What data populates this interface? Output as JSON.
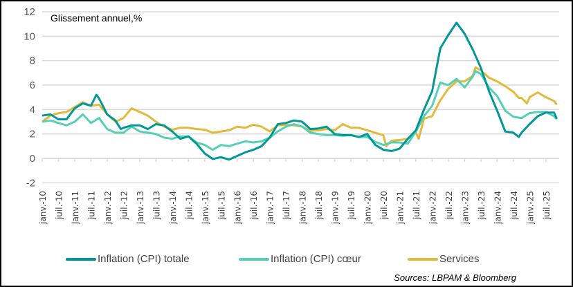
{
  "chart_data": {
    "type": "line",
    "title": "Glissement annuel,%",
    "xlabel": "",
    "ylabel": "",
    "ylim": [
      -2,
      12
    ],
    "y_ticks": [
      -2,
      0,
      2,
      4,
      6,
      8,
      10,
      12
    ],
    "x_range": [
      "2010-01",
      "2025-11"
    ],
    "x_tick_labels": [
      "janv.-10",
      "juil.-10",
      "janv.-11",
      "juil.-11",
      "janv.-12",
      "juil.-12",
      "janv.-13",
      "juil.-13",
      "janv.-14",
      "juil.-14",
      "janv.-15",
      "juil.-15",
      "janv.-16",
      "juil.-16",
      "janv.-17",
      "juil.-17",
      "janv.-18",
      "juil.-18",
      "janv.-19",
      "juil.-19",
      "janv.-20",
      "juil.-20",
      "janv.-21",
      "juil.-21",
      "janv.-22",
      "juil.-22",
      "janv.-23",
      "juil.-23",
      "janv.-24",
      "juil.-24",
      "janv.-25",
      "juil.-25"
    ],
    "grid": true,
    "legend_position": "bottom",
    "source": "Sources: LBPAM & Bloomberg",
    "series": [
      {
        "name": "Inflation (CPI) totale",
        "color": "#00979a",
        "points": [
          [
            "2010-01",
            3.5
          ],
          [
            "2010-04",
            3.6
          ],
          [
            "2010-07",
            3.2
          ],
          [
            "2010-10",
            3.2
          ],
          [
            "2011-01",
            4.1
          ],
          [
            "2011-04",
            4.5
          ],
          [
            "2011-07",
            4.3
          ],
          [
            "2011-09",
            5.2
          ],
          [
            "2011-10",
            4.9
          ],
          [
            "2012-01",
            3.6
          ],
          [
            "2012-04",
            3.1
          ],
          [
            "2012-06",
            2.4
          ],
          [
            "2012-07",
            2.5
          ],
          [
            "2012-10",
            2.7
          ],
          [
            "2013-01",
            2.7
          ],
          [
            "2013-04",
            2.4
          ],
          [
            "2013-07",
            2.8
          ],
          [
            "2013-10",
            2.7
          ],
          [
            "2014-01",
            2.2
          ],
          [
            "2014-04",
            1.6
          ],
          [
            "2014-07",
            1.8
          ],
          [
            "2014-10",
            1.2
          ],
          [
            "2015-01",
            0.4
          ],
          [
            "2015-04",
            -0.05
          ],
          [
            "2015-07",
            0.1
          ],
          [
            "2015-10",
            -0.1
          ],
          [
            "2016-01",
            0.2
          ],
          [
            "2016-04",
            0.5
          ],
          [
            "2016-07",
            0.7
          ],
          [
            "2016-10",
            1.0
          ],
          [
            "2017-01",
            1.7
          ],
          [
            "2017-04",
            2.8
          ],
          [
            "2017-07",
            2.9
          ],
          [
            "2017-10",
            3.1
          ],
          [
            "2018-01",
            3.0
          ],
          [
            "2018-04",
            2.4
          ],
          [
            "2018-07",
            2.45
          ],
          [
            "2018-10",
            2.6
          ],
          [
            "2019-01",
            2.0
          ],
          [
            "2019-04",
            1.9
          ],
          [
            "2019-07",
            1.9
          ],
          [
            "2019-10",
            1.75
          ],
          [
            "2020-01",
            2.0
          ],
          [
            "2020-04",
            1.1
          ],
          [
            "2020-07",
            0.7
          ],
          [
            "2020-10",
            0.6
          ],
          [
            "2021-01",
            0.8
          ],
          [
            "2021-04",
            1.6
          ],
          [
            "2021-07",
            2.3
          ],
          [
            "2021-10",
            4.0
          ],
          [
            "2022-01",
            5.5
          ],
          [
            "2022-04",
            9.0
          ],
          [
            "2022-07",
            10.1
          ],
          [
            "2022-10",
            11.1
          ],
          [
            "2023-01",
            10.2
          ],
          [
            "2023-04",
            8.9
          ],
          [
            "2023-07",
            7.4
          ],
          [
            "2023-10",
            5.5
          ],
          [
            "2024-01",
            3.9
          ],
          [
            "2024-04",
            2.2
          ],
          [
            "2024-07",
            2.1
          ],
          [
            "2024-09",
            1.75
          ],
          [
            "2024-10",
            2.1
          ],
          [
            "2025-01",
            2.8
          ],
          [
            "2025-04",
            3.45
          ],
          [
            "2025-07",
            3.75
          ],
          [
            "2025-10",
            3.75
          ],
          [
            "2025-11",
            3.25
          ]
        ]
      },
      {
        "name": "Inflation (CPI) cœur",
        "color": "#55d0b6",
        "points": [
          [
            "2010-01",
            3.0
          ],
          [
            "2010-04",
            3.1
          ],
          [
            "2010-07",
            2.9
          ],
          [
            "2010-10",
            2.7
          ],
          [
            "2011-01",
            3.0
          ],
          [
            "2011-04",
            3.6
          ],
          [
            "2011-07",
            2.9
          ],
          [
            "2011-10",
            3.3
          ],
          [
            "2012-01",
            2.4
          ],
          [
            "2012-04",
            2.1
          ],
          [
            "2012-07",
            2.1
          ],
          [
            "2012-10",
            2.6
          ],
          [
            "2013-01",
            2.2
          ],
          [
            "2013-04",
            2.1
          ],
          [
            "2013-07",
            2.0
          ],
          [
            "2013-10",
            1.7
          ],
          [
            "2014-01",
            1.6
          ],
          [
            "2014-04",
            1.8
          ],
          [
            "2014-07",
            1.8
          ],
          [
            "2014-10",
            1.3
          ],
          [
            "2015-01",
            1.1
          ],
          [
            "2015-04",
            0.7
          ],
          [
            "2015-07",
            1.1
          ],
          [
            "2015-10",
            1.0
          ],
          [
            "2016-01",
            1.2
          ],
          [
            "2016-04",
            1.4
          ],
          [
            "2016-07",
            1.3
          ],
          [
            "2016-10",
            1.4
          ],
          [
            "2017-01",
            1.7
          ],
          [
            "2017-04",
            2.2
          ],
          [
            "2017-07",
            2.6
          ],
          [
            "2017-10",
            2.8
          ],
          [
            "2018-01",
            2.6
          ],
          [
            "2018-04",
            2.1
          ],
          [
            "2018-07",
            2.0
          ],
          [
            "2018-10",
            1.9
          ],
          [
            "2019-01",
            1.9
          ],
          [
            "2019-04",
            1.85
          ],
          [
            "2019-07",
            1.9
          ],
          [
            "2019-10",
            1.75
          ],
          [
            "2020-01",
            1.75
          ],
          [
            "2020-04",
            1.35
          ],
          [
            "2020-07",
            1.1
          ],
          [
            "2020-10",
            1.3
          ],
          [
            "2021-01",
            1.3
          ],
          [
            "2021-04",
            1.2
          ],
          [
            "2021-07",
            2.2
          ],
          [
            "2021-10",
            3.45
          ],
          [
            "2022-01",
            4.3
          ],
          [
            "2022-04",
            6.2
          ],
          [
            "2022-07",
            6.0
          ],
          [
            "2022-10",
            6.5
          ],
          [
            "2023-01",
            5.8
          ],
          [
            "2023-04",
            6.7
          ],
          [
            "2023-05",
            7.15
          ],
          [
            "2023-07",
            6.9
          ],
          [
            "2023-10",
            5.8
          ],
          [
            "2024-01",
            5.1
          ],
          [
            "2024-04",
            3.9
          ],
          [
            "2024-07",
            3.4
          ],
          [
            "2024-10",
            3.3
          ],
          [
            "2025-01",
            3.7
          ],
          [
            "2025-04",
            3.8
          ],
          [
            "2025-07",
            3.8
          ],
          [
            "2025-10",
            3.45
          ],
          [
            "2025-11",
            3.2
          ]
        ]
      },
      {
        "name": "Services",
        "color": "#e3b93c",
        "points": [
          [
            "2010-01",
            3.0
          ],
          [
            "2010-04",
            3.5
          ],
          [
            "2010-07",
            3.7
          ],
          [
            "2010-10",
            3.8
          ],
          [
            "2011-01",
            4.2
          ],
          [
            "2011-04",
            4.6
          ],
          [
            "2011-07",
            4.3
          ],
          [
            "2011-10",
            4.4
          ],
          [
            "2012-01",
            3.6
          ],
          [
            "2012-04",
            3.0
          ],
          [
            "2012-07",
            3.3
          ],
          [
            "2012-10",
            4.1
          ],
          [
            "2013-01",
            3.8
          ],
          [
            "2013-04",
            3.5
          ],
          [
            "2013-07",
            3.0
          ],
          [
            "2013-10",
            2.6
          ],
          [
            "2014-01",
            2.35
          ],
          [
            "2014-04",
            2.5
          ],
          [
            "2014-07",
            2.5
          ],
          [
            "2014-10",
            2.4
          ],
          [
            "2015-01",
            2.35
          ],
          [
            "2015-04",
            2.1
          ],
          [
            "2015-07",
            2.2
          ],
          [
            "2015-10",
            2.3
          ],
          [
            "2016-01",
            2.6
          ],
          [
            "2016-04",
            2.5
          ],
          [
            "2016-07",
            2.75
          ],
          [
            "2016-10",
            2.6
          ],
          [
            "2017-01",
            2.2
          ],
          [
            "2017-04",
            2.7
          ],
          [
            "2017-07",
            2.75
          ],
          [
            "2017-10",
            2.7
          ],
          [
            "2018-01",
            2.6
          ],
          [
            "2018-04",
            2.25
          ],
          [
            "2018-07",
            2.3
          ],
          [
            "2018-10",
            2.4
          ],
          [
            "2019-01",
            2.3
          ],
          [
            "2019-04",
            2.8
          ],
          [
            "2019-07",
            2.5
          ],
          [
            "2019-10",
            2.5
          ],
          [
            "2020-01",
            2.3
          ],
          [
            "2020-04",
            2.1
          ],
          [
            "2020-07",
            1.9
          ],
          [
            "2020-08",
            1.0
          ],
          [
            "2020-10",
            1.45
          ],
          [
            "2021-01",
            1.5
          ],
          [
            "2021-04",
            1.6
          ],
          [
            "2021-07",
            2.1
          ],
          [
            "2021-08",
            1.6
          ],
          [
            "2021-10",
            3.25
          ],
          [
            "2022-01",
            3.45
          ],
          [
            "2022-04",
            4.75
          ],
          [
            "2022-07",
            5.7
          ],
          [
            "2022-10",
            6.3
          ],
          [
            "2023-01",
            6.3
          ],
          [
            "2023-04",
            6.75
          ],
          [
            "2023-05",
            7.45
          ],
          [
            "2023-07",
            7.2
          ],
          [
            "2023-10",
            6.6
          ],
          [
            "2024-01",
            6.3
          ],
          [
            "2024-04",
            5.9
          ],
          [
            "2024-07",
            5.45
          ],
          [
            "2024-09",
            4.95
          ],
          [
            "2024-10",
            4.95
          ],
          [
            "2024-12",
            4.5
          ],
          [
            "2025-01",
            5.0
          ],
          [
            "2025-04",
            5.4
          ],
          [
            "2025-07",
            5.0
          ],
          [
            "2025-10",
            4.7
          ],
          [
            "2025-11",
            4.4
          ]
        ]
      }
    ]
  }
}
